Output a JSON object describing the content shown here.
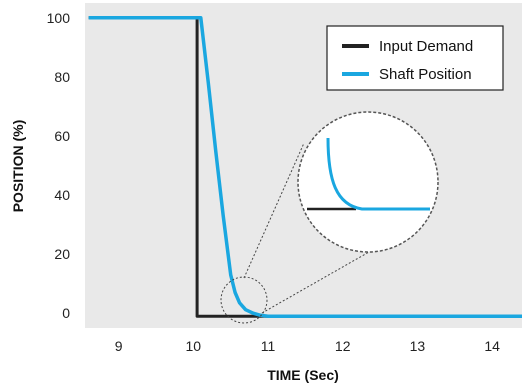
{
  "chart_data": {
    "type": "line",
    "title": "",
    "xlabel": "TIME (Sec)",
    "ylabel": "POSITION (%)",
    "xlim": [
      8.55,
      14.4
    ],
    "ylim": [
      -5,
      105
    ],
    "xticks": [
      9,
      10,
      11,
      12,
      13,
      14
    ],
    "yticks": [
      0,
      20,
      40,
      60,
      80,
      100
    ],
    "grid": false,
    "legend_position": "top-right",
    "series": [
      {
        "name": "Input Demand",
        "color": "#222222",
        "x": [
          8.6,
          10.05,
          10.05,
          14.4
        ],
        "y": [
          100,
          100,
          -1,
          -1
        ]
      },
      {
        "name": "Shaft Position",
        "color": "#1aa7e0",
        "x": [
          8.6,
          10.1,
          10.2,
          10.3,
          10.4,
          10.5,
          10.56,
          10.62,
          10.7,
          10.8,
          10.9,
          11.0,
          14.4
        ],
        "y": [
          100,
          100,
          78,
          55,
          33,
          13,
          7,
          3.5,
          1.2,
          0,
          -0.7,
          -1,
          -1
        ]
      }
    ],
    "annotations": [
      {
        "type": "zoom-inset",
        "center_data": [
          10.6,
          2
        ],
        "description": "magnified view of shaft position settling"
      }
    ]
  }
}
